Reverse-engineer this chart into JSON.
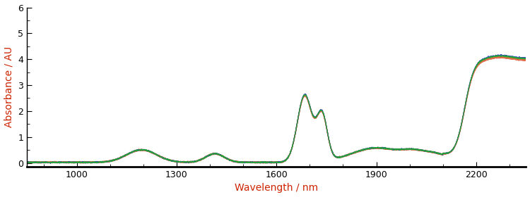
{
  "title": "",
  "xlabel": "Wavelength / nm",
  "ylabel": "Absorbance / AU",
  "xlabel_color": "#cc2200",
  "ylabel_color": "#cc2200",
  "xlim": [
    850,
    2350
  ],
  "ylim": [
    -0.15,
    6
  ],
  "yticks": [
    0,
    1,
    2,
    3,
    4,
    5,
    6
  ],
  "xticks": [
    1000,
    1300,
    1600,
    1900,
    2200
  ],
  "background_color": "#ffffff",
  "line_color_main": "#e07050",
  "line_color_blue": "#2233bb",
  "line_color_green": "#22aa33",
  "line_color_teal": "#229977",
  "line_color_orange2": "#dd6633",
  "linewidth": 0.9
}
